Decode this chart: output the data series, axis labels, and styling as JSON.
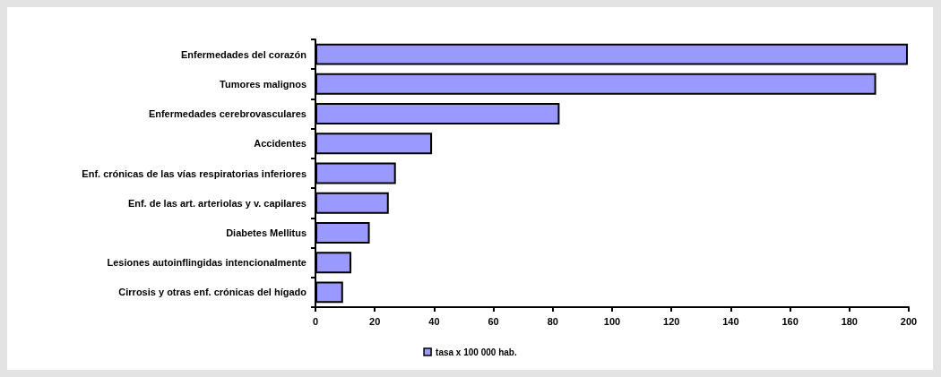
{
  "chart_data": {
    "type": "bar",
    "orientation": "horizontal",
    "categories": [
      "Enfermedades del corazón",
      "Tumores malignos",
      "Enfermedades cerebrovasculares",
      "Accidentes",
      "Enf. crónicas de las vías respiratorias inferiores",
      "Enf. de las art. arteriolas y v. capilares",
      "Diabetes Mellitus",
      "Lesiones autoinflingidas intencionalmente",
      "Cirrosis y otras enf. crónicas del hígado"
    ],
    "series": [
      {
        "name": "tasa x 100 000 hab.",
        "color": "#9999ff",
        "values": [
          199.7,
          189,
          82.3,
          39.3,
          27.1,
          24.7,
          18.3,
          12.1,
          9.3
        ]
      }
    ],
    "xlim": [
      0,
      200
    ],
    "xticks": [
      0,
      20,
      40,
      60,
      80,
      100,
      120,
      140,
      160,
      180,
      200
    ],
    "grid": false,
    "legend": "bottom"
  }
}
